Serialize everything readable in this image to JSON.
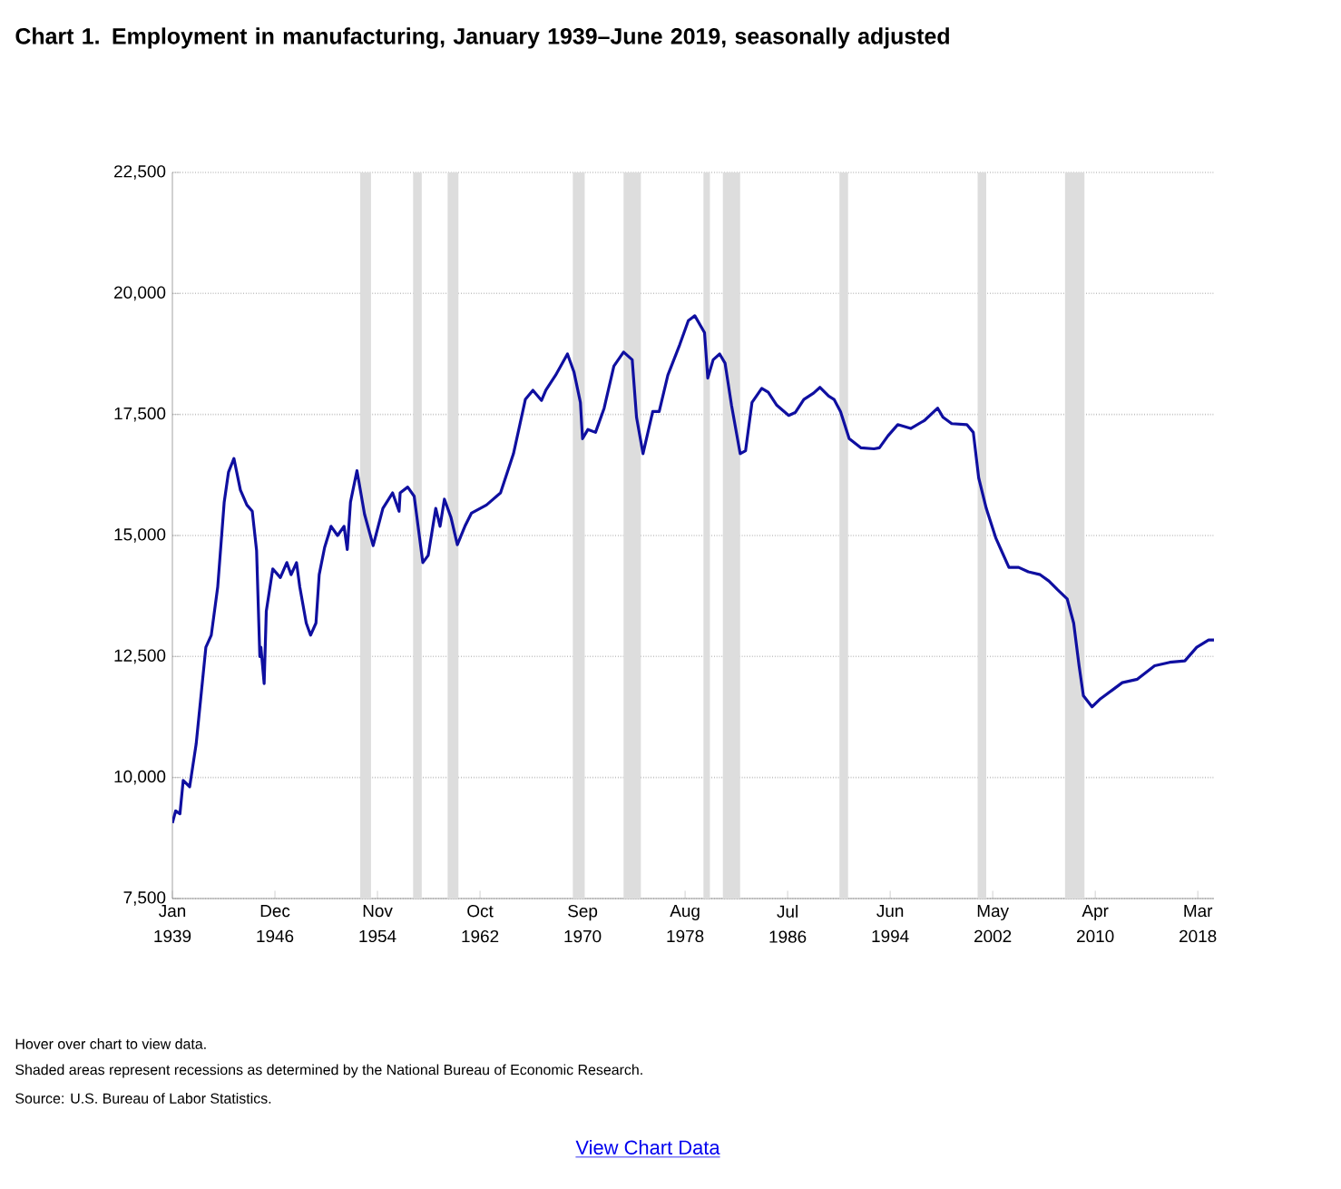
{
  "chart_data": {
    "type": "line",
    "title": "Chart 1. Employment in manufacturing, January 1939–June 2019, seasonally adjusted",
    "annotations": [
      "Hover over chart to view data.",
      "Shaded areas represent recessions as determined by the National Bureau of Economic Research.",
      "Source: U.S. Bureau of Labor Statistics.",
      "View Chart Data"
    ],
    "x": [
      "1939-01",
      "1939-04",
      "1939-08",
      "1939-11",
      "1940-05",
      "1940-11",
      "1941-08",
      "1942-01",
      "1942-07",
      "1943-01",
      "1943-05",
      "1943-10",
      "1944-04",
      "1944-10",
      "1945-03",
      "1945-07",
      "1945-10",
      "1945-11",
      "1946-02",
      "1946-04",
      "1946-10",
      "1947-05",
      "1947-11",
      "1948-03",
      "1948-08",
      "1948-11",
      "1949-05",
      "1949-09",
      "1950-02",
      "1950-05",
      "1950-10",
      "1951-04",
      "1951-10",
      "1952-04",
      "1952-07",
      "1952-10",
      "1953-04",
      "1953-11",
      "1954-07",
      "1955-04",
      "1956-01",
      "1956-07",
      "1956-08",
      "1957-03",
      "1957-09",
      "1958-05",
      "1958-10",
      "1959-05",
      "1959-09",
      "1960-01",
      "1960-07",
      "1961-01",
      "1961-08",
      "1962-02",
      "1963-04",
      "1964-05",
      "1965-05",
      "1966-04",
      "1966-11",
      "1967-07",
      "1967-11",
      "1968-08",
      "1969-07",
      "1970-01",
      "1970-07",
      "1970-09",
      "1971-02",
      "1971-09",
      "1972-05",
      "1973-02",
      "1973-11",
      "1974-07",
      "1974-11",
      "1975-05",
      "1976-02",
      "1976-08",
      "1977-04",
      "1978-03",
      "1978-11",
      "1979-05",
      "1980-02",
      "1980-05",
      "1980-10",
      "1981-04",
      "1981-09",
      "1982-03",
      "1982-11",
      "1983-04",
      "1983-10",
      "1984-07",
      "1985-01",
      "1985-09",
      "1986-08",
      "1987-02",
      "1987-10",
      "1988-07",
      "1989-01",
      "1989-09",
      "1990-02",
      "1990-08",
      "1991-04",
      "1992-03",
      "1993-03",
      "1993-08",
      "1994-04",
      "1995-01",
      "1996-01",
      "1997-02",
      "1998-02",
      "1998-07",
      "1999-03",
      "2000-05",
      "2000-11",
      "2001-04",
      "2001-11",
      "2002-08",
      "2003-01",
      "2003-08",
      "2004-05",
      "2005-02",
      "2006-01",
      "2006-09",
      "2007-05",
      "2008-02",
      "2008-08",
      "2009-01",
      "2009-05",
      "2010-01",
      "2010-09",
      "2011-08",
      "2012-05",
      "2013-07",
      "2014-11",
      "2016-01",
      "2017-03",
      "2018-02",
      "2019-01",
      "2019-06"
    ],
    "series": [
      {
        "color": "#0f0fa0",
        "values": [
          9060,
          9310,
          9250,
          9940,
          9810,
          10690,
          12690,
          12940,
          13940,
          15690,
          16310,
          16590,
          15940,
          15630,
          15500,
          14690,
          12500,
          12690,
          11940,
          13440,
          14310,
          14130,
          14440,
          14190,
          14440,
          13940,
          13190,
          12940,
          13190,
          14190,
          14750,
          15190,
          15000,
          15190,
          14710,
          15690,
          16340,
          15440,
          14790,
          15560,
          15880,
          15500,
          15880,
          16000,
          15810,
          14440,
          14590,
          15560,
          15190,
          15750,
          15380,
          14810,
          15190,
          15460,
          15630,
          15880,
          16690,
          17810,
          18000,
          17790,
          18000,
          18310,
          18750,
          18380,
          17750,
          17000,
          17190,
          17130,
          17630,
          18500,
          18790,
          18630,
          17440,
          16690,
          17560,
          17560,
          18310,
          18940,
          19440,
          19540,
          19190,
          18250,
          18630,
          18750,
          18560,
          17690,
          16690,
          16750,
          17750,
          18040,
          17960,
          17690,
          17480,
          17540,
          17810,
          17940,
          18060,
          17880,
          17810,
          17560,
          17000,
          16810,
          16790,
          16810,
          17060,
          17290,
          17210,
          17380,
          17630,
          17440,
          17310,
          17290,
          17130,
          16190,
          15560,
          14940,
          14690,
          14340,
          14340,
          14250,
          14190,
          14060,
          13880,
          13690,
          13190,
          12310,
          11690,
          11460,
          11630,
          11810,
          11960,
          12030,
          12310,
          12380,
          12410,
          12690,
          12840,
          12840
        ]
      }
    ],
    "xlim": [
      "1939-01",
      "2019-06"
    ],
    "xticks": [
      {
        "value": "1939-01",
        "label": "Jan 1939"
      },
      {
        "value": "1946-12",
        "label": "Dec 1946"
      },
      {
        "value": "1954-11",
        "label": "Nov 1954"
      },
      {
        "value": "1962-10",
        "label": "Oct 1962"
      },
      {
        "value": "1970-09",
        "label": "Sep 1970"
      },
      {
        "value": "1978-08",
        "label": "Aug 1978"
      },
      {
        "value": "1986-07",
        "label": "Jul 1986"
      },
      {
        "value": "1994-06",
        "label": "Jun 1994"
      },
      {
        "value": "2002-05",
        "label": "May 2002"
      },
      {
        "value": "2010-04",
        "label": "Apr 2010"
      },
      {
        "value": "2018-03",
        "label": "Mar 2018"
      }
    ],
    "ylim": [
      7500,
      22500
    ],
    "yticks": [
      {
        "value": 7500,
        "label": "7,500"
      },
      {
        "value": 10000,
        "label": "10,000"
      },
      {
        "value": 12500,
        "label": "12,500"
      },
      {
        "value": 15000,
        "label": "15,000"
      },
      {
        "value": 17500,
        "label": "17,500"
      },
      {
        "value": 20000,
        "label": "20,000"
      },
      {
        "value": 22500,
        "label": "22,500"
      }
    ],
    "grid": "y",
    "bands": [
      {
        "axis": "x",
        "from": "1953-07",
        "to": "1954-05",
        "color": "#dddddd"
      },
      {
        "axis": "x",
        "from": "1957-08",
        "to": "1958-04",
        "color": "#dddddd"
      },
      {
        "axis": "x",
        "from": "1960-04",
        "to": "1961-02",
        "color": "#dddddd"
      },
      {
        "axis": "x",
        "from": "1969-12",
        "to": "1970-11",
        "color": "#dddddd"
      },
      {
        "axis": "x",
        "from": "1973-11",
        "to": "1975-03",
        "color": "#dddddd"
      },
      {
        "axis": "x",
        "from": "1980-01",
        "to": "1980-07",
        "color": "#dddddd"
      },
      {
        "axis": "x",
        "from": "1981-07",
        "to": "1982-11",
        "color": "#dddddd"
      },
      {
        "axis": "x",
        "from": "1990-07",
        "to": "1991-03",
        "color": "#dddddd"
      },
      {
        "axis": "x",
        "from": "2001-03",
        "to": "2001-11",
        "color": "#dddddd"
      },
      {
        "axis": "x",
        "from": "2007-12",
        "to": "2009-06",
        "color": "#dddddd"
      }
    ]
  }
}
